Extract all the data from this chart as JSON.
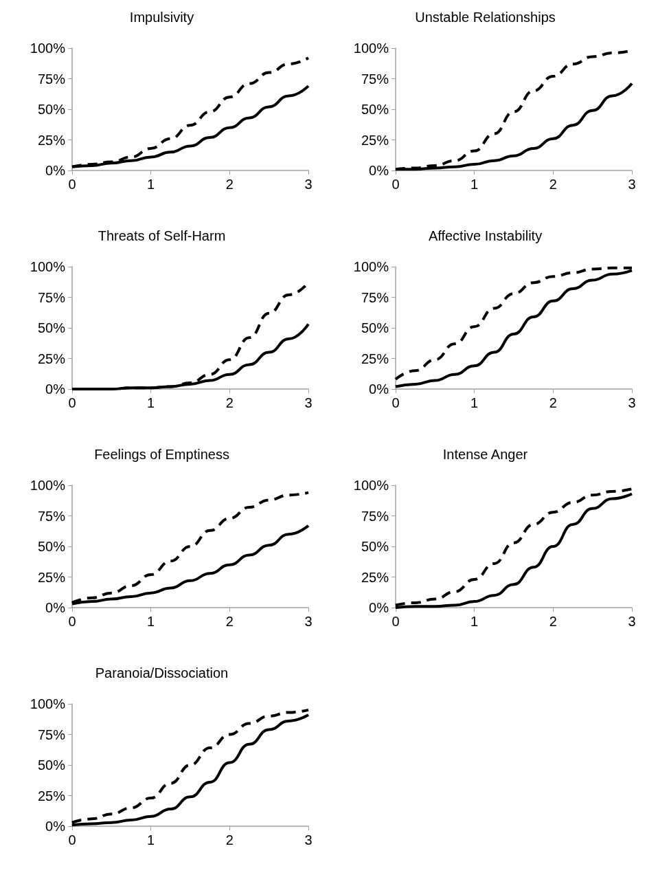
{
  "chart_data": [
    {
      "type": "line",
      "title": "Impulsivity",
      "x": [
        0,
        0.25,
        0.5,
        0.75,
        1,
        1.25,
        1.5,
        1.75,
        2,
        2.25,
        2.5,
        2.75,
        3
      ],
      "xlim": [
        0,
        3
      ],
      "xticks": [
        0,
        1,
        2,
        3
      ],
      "ylim": [
        0,
        100
      ],
      "yticks": [
        {
          "value": 0,
          "label": "0%"
        },
        {
          "value": 25,
          "label": "25%"
        },
        {
          "value": 50,
          "label": "50%"
        },
        {
          "value": 75,
          "label": "75%"
        },
        {
          "value": 100,
          "label": "100%"
        }
      ],
      "grid": false,
      "marker": "none",
      "series": [
        {
          "color": "#000000",
          "line_style": "solid",
          "values": [
            3,
            4,
            6,
            8,
            11,
            15,
            20,
            27,
            35,
            43,
            52,
            61,
            69
          ]
        },
        {
          "color": "#000000",
          "line_style": "dashed",
          "values": [
            3,
            5,
            7,
            11,
            18,
            26,
            37,
            48,
            60,
            71,
            80,
            87,
            92
          ]
        }
      ]
    },
    {
      "type": "line",
      "title": "Unstable Relationships",
      "x": [
        0,
        0.25,
        0.5,
        0.75,
        1,
        1.25,
        1.5,
        1.75,
        2,
        2.25,
        2.5,
        2.75,
        3
      ],
      "xlim": [
        0,
        3
      ],
      "xticks": [
        0,
        1,
        2,
        3
      ],
      "ylim": [
        0,
        100
      ],
      "yticks": [
        {
          "value": 0,
          "label": "0%"
        },
        {
          "value": 25,
          "label": "25%"
        },
        {
          "value": 50,
          "label": "50%"
        },
        {
          "value": 75,
          "label": "75%"
        },
        {
          "value": 100,
          "label": "100%"
        }
      ],
      "grid": false,
      "marker": "none",
      "series": [
        {
          "color": "#000000",
          "line_style": "solid",
          "values": [
            1,
            1,
            2,
            3,
            5,
            8,
            12,
            18,
            26,
            37,
            49,
            61,
            71
          ]
        },
        {
          "color": "#000000",
          "line_style": "dashed",
          "values": [
            1,
            2,
            4,
            8,
            16,
            30,
            48,
            65,
            77,
            87,
            93,
            96,
            98
          ]
        }
      ]
    },
    {
      "type": "line",
      "title": "Threats of Self-Harm",
      "x": [
        0,
        0.25,
        0.5,
        0.75,
        1,
        1.25,
        1.5,
        1.75,
        2,
        2.25,
        2.5,
        2.75,
        3
      ],
      "xlim": [
        0,
        3
      ],
      "xticks": [
        0,
        1,
        2,
        3
      ],
      "ylim": [
        0,
        100
      ],
      "yticks": [
        {
          "value": 0,
          "label": "0%"
        },
        {
          "value": 25,
          "label": "25%"
        },
        {
          "value": 50,
          "label": "50%"
        },
        {
          "value": 75,
          "label": "75%"
        },
        {
          "value": 100,
          "label": "100%"
        }
      ],
      "grid": false,
      "marker": "none",
      "series": [
        {
          "color": "#000000",
          "line_style": "solid",
          "values": [
            0,
            0,
            0,
            1,
            1,
            2,
            4,
            7,
            12,
            20,
            30,
            41,
            53
          ]
        },
        {
          "color": "#000000",
          "line_style": "dashed",
          "values": [
            0,
            0,
            0,
            1,
            1,
            2,
            5,
            12,
            24,
            42,
            62,
            77,
            87
          ]
        }
      ]
    },
    {
      "type": "line",
      "title": "Affective Instability",
      "x": [
        0,
        0.25,
        0.5,
        0.75,
        1,
        1.25,
        1.5,
        1.75,
        2,
        2.25,
        2.5,
        2.75,
        3
      ],
      "xlim": [
        0,
        3
      ],
      "xticks": [
        0,
        1,
        2,
        3
      ],
      "ylim": [
        0,
        100
      ],
      "yticks": [
        {
          "value": 0,
          "label": "0%"
        },
        {
          "value": 25,
          "label": "25%"
        },
        {
          "value": 50,
          "label": "50%"
        },
        {
          "value": 75,
          "label": "75%"
        },
        {
          "value": 100,
          "label": "100%"
        }
      ],
      "grid": false,
      "marker": "none",
      "series": [
        {
          "color": "#000000",
          "line_style": "solid",
          "values": [
            2,
            4,
            7,
            12,
            19,
            30,
            45,
            59,
            72,
            82,
            89,
            94,
            97
          ]
        },
        {
          "color": "#000000",
          "line_style": "dashed",
          "values": [
            8,
            15,
            24,
            37,
            51,
            66,
            78,
            87,
            92,
            95,
            98,
            99,
            99
          ]
        }
      ]
    },
    {
      "type": "line",
      "title": "Feelings of Emptiness",
      "x": [
        0,
        0.25,
        0.5,
        0.75,
        1,
        1.25,
        1.5,
        1.75,
        2,
        2.25,
        2.5,
        2.75,
        3
      ],
      "xlim": [
        0,
        3
      ],
      "xticks": [
        0,
        1,
        2,
        3
      ],
      "ylim": [
        0,
        100
      ],
      "yticks": [
        {
          "value": 0,
          "label": "0%"
        },
        {
          "value": 25,
          "label": "25%"
        },
        {
          "value": 50,
          "label": "50%"
        },
        {
          "value": 75,
          "label": "75%"
        },
        {
          "value": 100,
          "label": "100%"
        }
      ],
      "grid": false,
      "marker": "none",
      "series": [
        {
          "color": "#000000",
          "line_style": "solid",
          "values": [
            3,
            5,
            7,
            9,
            12,
            16,
            22,
            28,
            35,
            43,
            51,
            60,
            67
          ]
        },
        {
          "color": "#000000",
          "line_style": "dashed",
          "values": [
            4,
            8,
            12,
            18,
            27,
            38,
            50,
            63,
            73,
            82,
            88,
            92,
            94
          ]
        }
      ]
    },
    {
      "type": "line",
      "title": "Intense Anger",
      "x": [
        0,
        0.25,
        0.5,
        0.75,
        1,
        1.25,
        1.5,
        1.75,
        2,
        2.25,
        2.5,
        2.75,
        3
      ],
      "xlim": [
        0,
        3
      ],
      "xticks": [
        0,
        1,
        2,
        3
      ],
      "ylim": [
        0,
        100
      ],
      "yticks": [
        {
          "value": 0,
          "label": "0%"
        },
        {
          "value": 25,
          "label": "25%"
        },
        {
          "value": 50,
          "label": "50%"
        },
        {
          "value": 75,
          "label": "75%"
        },
        {
          "value": 100,
          "label": "100%"
        }
      ],
      "grid": false,
      "marker": "none",
      "series": [
        {
          "color": "#000000",
          "line_style": "solid",
          "values": [
            0,
            1,
            1,
            2,
            5,
            10,
            19,
            33,
            50,
            68,
            81,
            89,
            93
          ]
        },
        {
          "color": "#000000",
          "line_style": "dashed",
          "values": [
            2,
            4,
            7,
            13,
            23,
            36,
            53,
            68,
            78,
            86,
            92,
            95,
            97
          ]
        }
      ]
    },
    {
      "type": "line",
      "title": "Paranoia/Dissociation",
      "x": [
        0,
        0.25,
        0.5,
        0.75,
        1,
        1.25,
        1.5,
        1.75,
        2,
        2.25,
        2.5,
        2.75,
        3
      ],
      "xlim": [
        0,
        3
      ],
      "xticks": [
        0,
        1,
        2,
        3
      ],
      "ylim": [
        0,
        100
      ],
      "yticks": [
        {
          "value": 0,
          "label": "0%"
        },
        {
          "value": 25,
          "label": "25%"
        },
        {
          "value": 50,
          "label": "50%"
        },
        {
          "value": 75,
          "label": "75%"
        },
        {
          "value": 100,
          "label": "100%"
        }
      ],
      "grid": false,
      "marker": "none",
      "series": [
        {
          "color": "#000000",
          "line_style": "solid",
          "values": [
            1,
            2,
            3,
            5,
            8,
            14,
            24,
            36,
            52,
            67,
            79,
            86,
            91
          ]
        },
        {
          "color": "#000000",
          "line_style": "dashed",
          "values": [
            3,
            6,
            10,
            15,
            23,
            35,
            50,
            64,
            75,
            84,
            90,
            93,
            95
          ]
        }
      ]
    }
  ]
}
